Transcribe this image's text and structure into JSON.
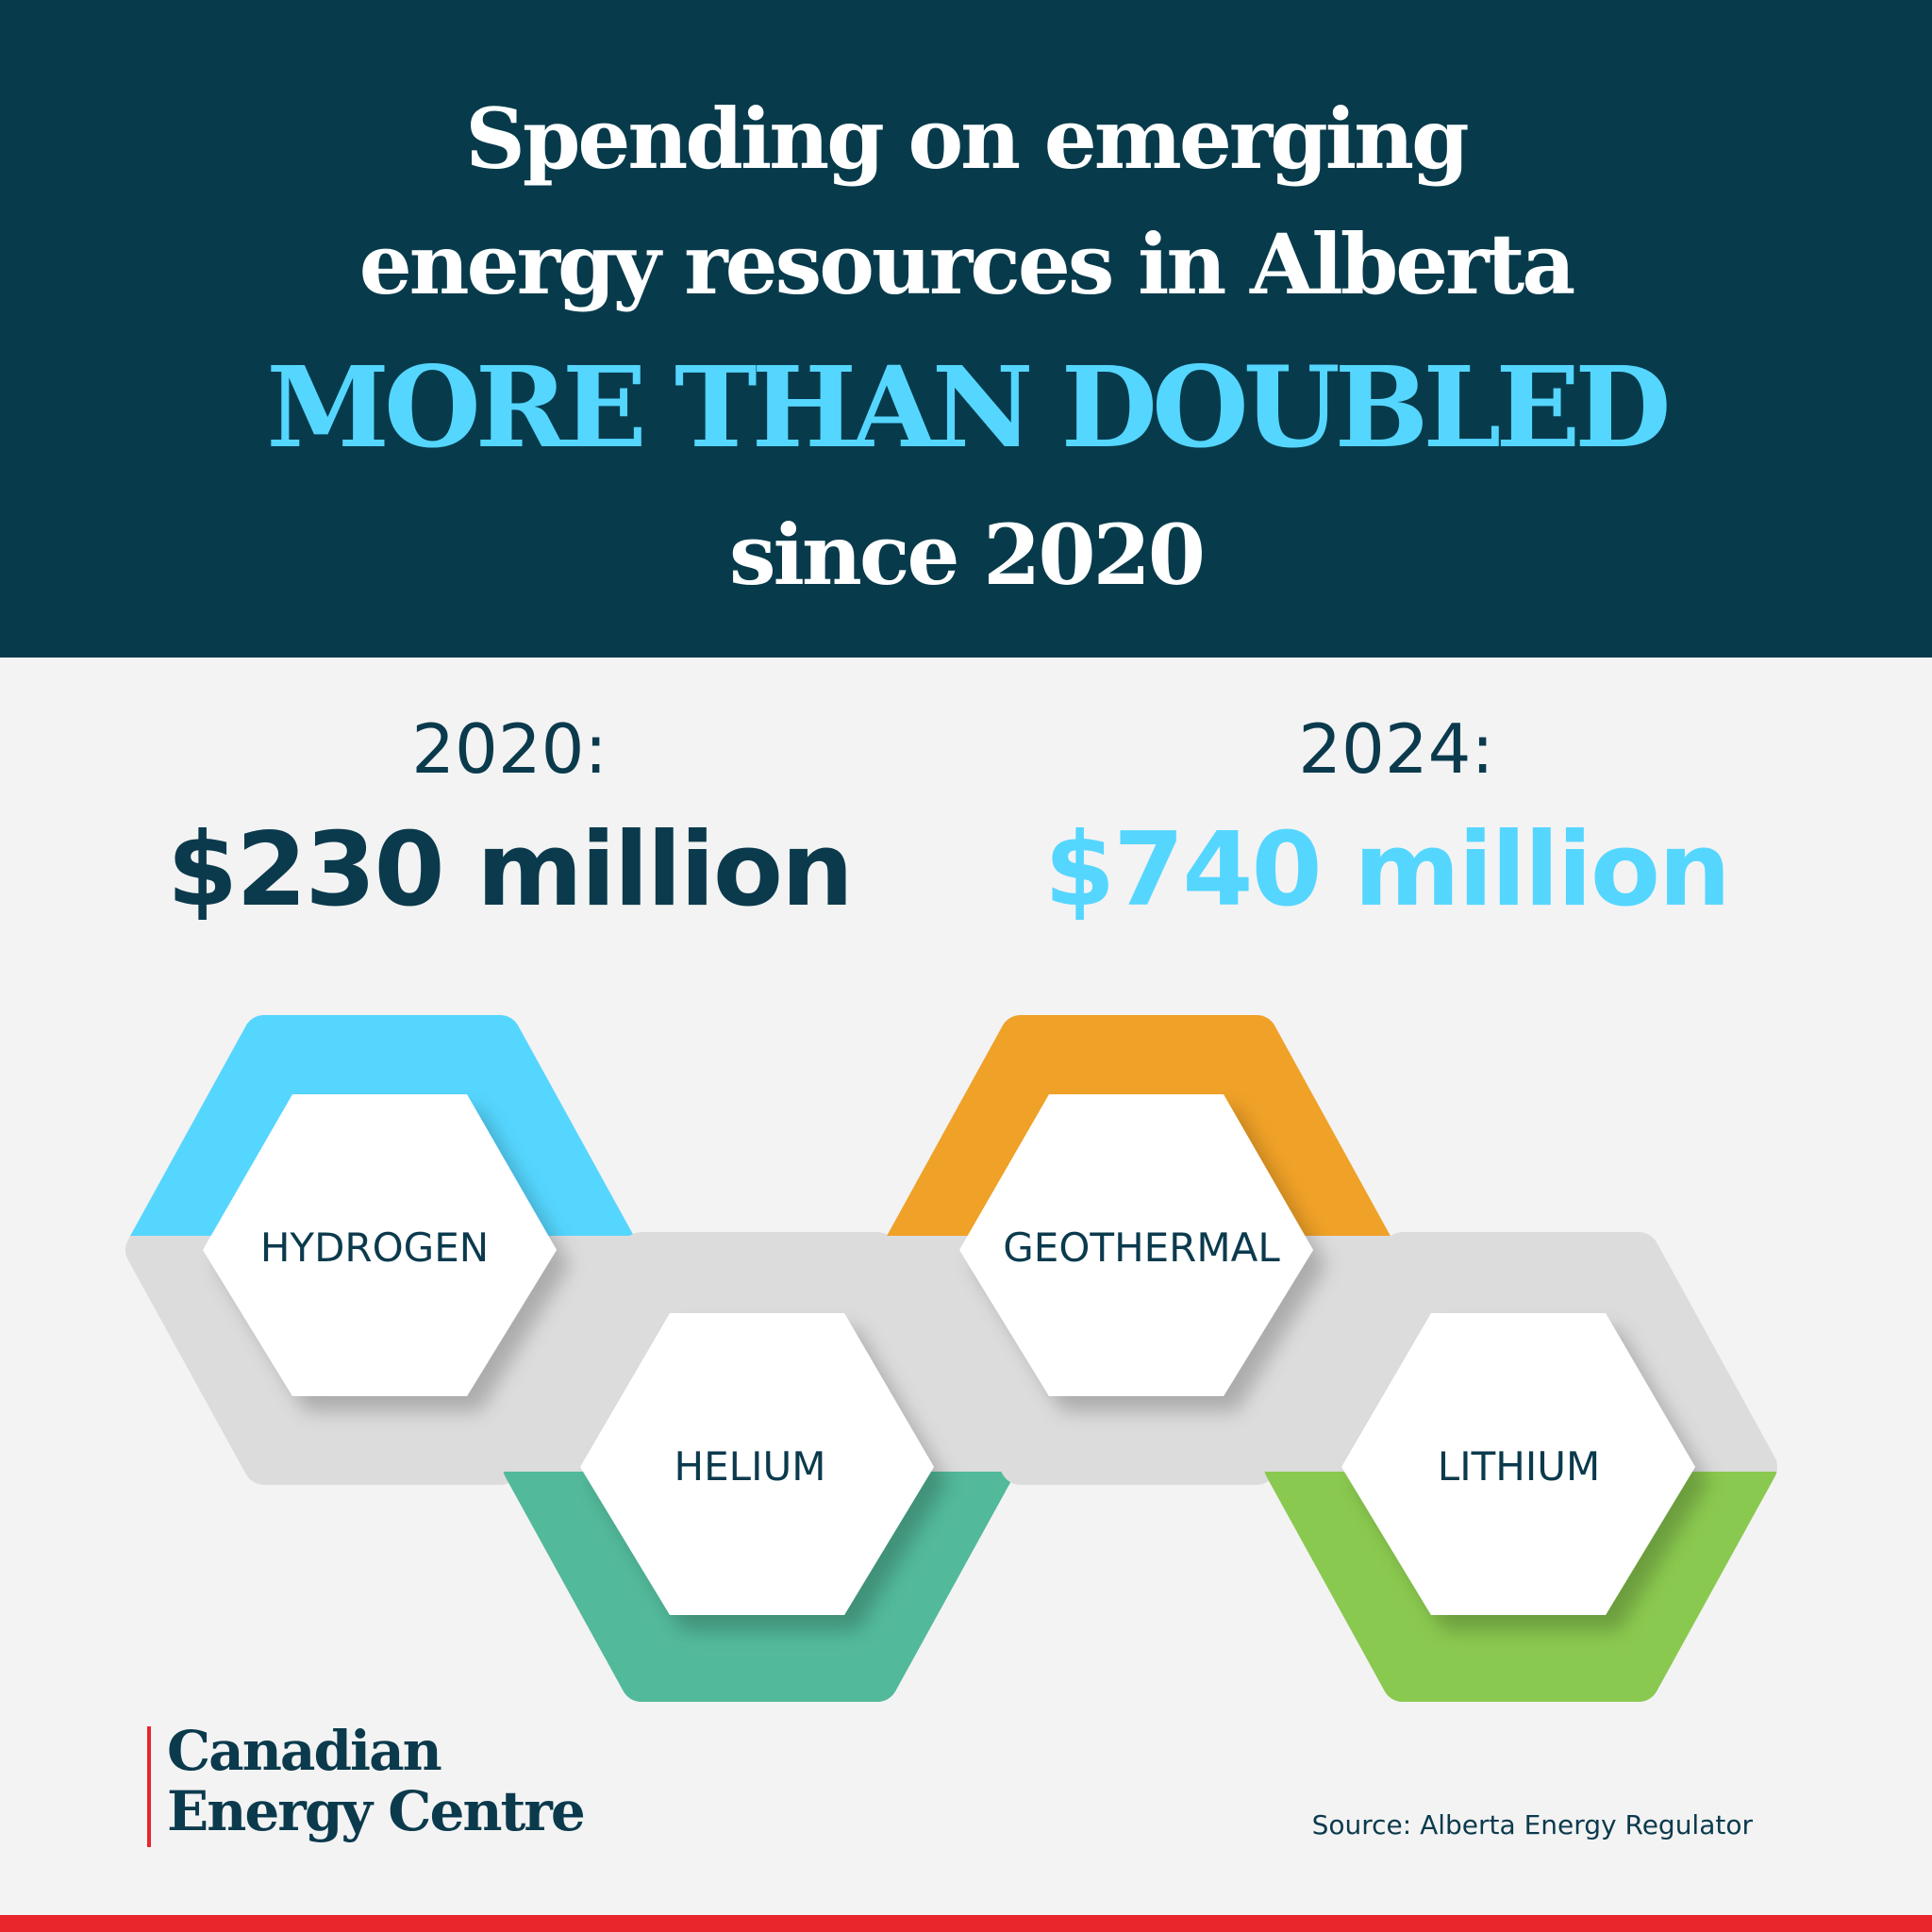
{
  "header": {
    "line1": "Spending on emerging",
    "line2": "energy resources in Alberta",
    "highlight": "MORE THAN DOUBLED",
    "line4": "since 2020"
  },
  "comparison": {
    "left": {
      "year_label": "2020:",
      "amount": "$230 million"
    },
    "right": {
      "year_label": "2024:",
      "amount": "$740 million"
    }
  },
  "resources": [
    {
      "label": "HYDROGEN",
      "accent": "#55d6ff"
    },
    {
      "label": "HELIUM",
      "accent": "#52b99a"
    },
    {
      "label": "GEOTHERMAL",
      "accent": "#f0a127"
    },
    {
      "label": "LITHIUM",
      "accent": "#8ac94f"
    }
  ],
  "logo": {
    "line1": "Canadian",
    "line2": "Energy Centre"
  },
  "source": "Source: Alberta Energy Regulator",
  "colors": {
    "navy": "#073b4c",
    "cyan": "#55d6ff",
    "red": "#e8262c"
  }
}
